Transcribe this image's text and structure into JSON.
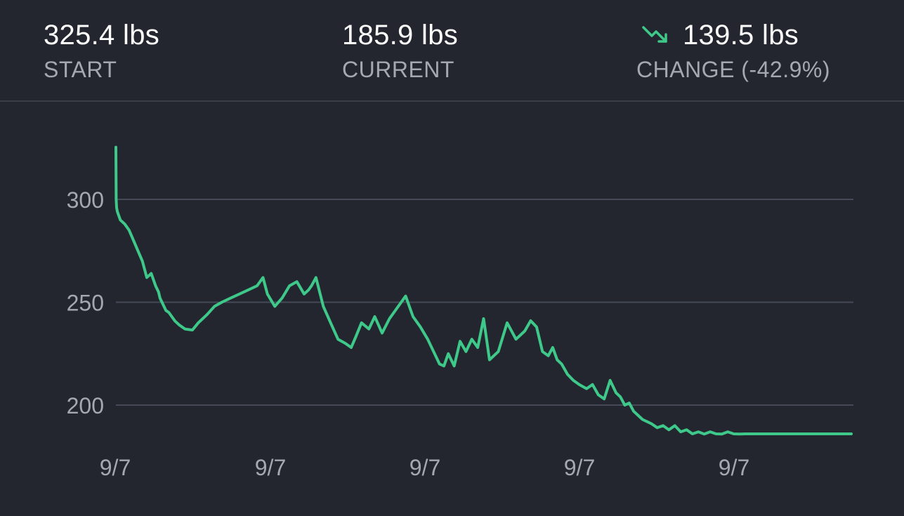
{
  "stats": {
    "start": {
      "value": "325.4 lbs",
      "label": "START"
    },
    "current": {
      "value": "185.9 lbs",
      "label": "CURRENT"
    },
    "change": {
      "value": "139.5 lbs",
      "label": "CHANGE (-42.9%)",
      "icon": "trending-down-icon",
      "color": "#3ec98a"
    }
  },
  "colors": {
    "background": "#23262f",
    "line": "#3ec98a",
    "grid": "#454a56",
    "axis_text": "#a4a8b2"
  },
  "chart_data": {
    "type": "line",
    "title": "",
    "xlabel": "",
    "ylabel": "",
    "ylim": [
      180,
      335
    ],
    "yticks": [
      200,
      250,
      300
    ],
    "xtick_labels": [
      "9/7",
      "9/7",
      "9/7",
      "9/7",
      "9/7"
    ],
    "grid": true,
    "series": [
      {
        "color": "#3ec98a",
        "x": [
          0,
          0.2,
          0.5,
          1,
          3,
          6,
          9,
          12,
          15,
          18,
          21,
          24,
          27,
          29,
          30,
          32,
          34,
          36,
          40,
          43,
          47,
          52,
          56,
          62,
          67,
          72,
          78,
          84,
          90,
          96,
          100,
          103,
          108,
          113,
          118,
          123,
          128,
          131,
          133,
          136,
          141,
          146,
          151,
          156,
          160,
          163,
          167,
          172,
          176,
          181,
          186,
          192,
          197,
          202,
          207,
          212,
          216,
          220,
          223,
          226,
          230,
          234,
          238,
          242,
          246,
          250,
          254,
          260,
          266,
          272,
          278,
          282,
          286,
          290,
          294,
          297,
          300,
          303,
          307,
          311,
          315,
          320,
          324,
          328,
          332,
          336,
          340,
          343,
          346,
          349,
          352,
          355,
          358,
          361,
          364,
          368,
          372,
          376,
          380,
          384,
          388,
          392,
          396,
          400,
          404,
          408,
          412,
          416,
          420,
          424,
          428,
          432,
          436,
          440,
          444,
          448,
          452,
          456,
          460,
          464,
          468,
          472,
          476,
          480,
          484,
          488,
          492,
          496,
          500
        ],
        "values": [
          325.4,
          300,
          296,
          294,
          290,
          288,
          285,
          280,
          275,
          270,
          262,
          264,
          258,
          255,
          252,
          249,
          246,
          245,
          241,
          239,
          237,
          236.5,
          240,
          244,
          248,
          250,
          252,
          254,
          256,
          258,
          262,
          254,
          248,
          252,
          258,
          260,
          254,
          256,
          258,
          262,
          248,
          240,
          232,
          230,
          228,
          233,
          240,
          237,
          243,
          235,
          242,
          248,
          253,
          243,
          238,
          232,
          226,
          220,
          219,
          225,
          219,
          231,
          226,
          232,
          228,
          242,
          222,
          226,
          240,
          232,
          236,
          241,
          238,
          226,
          224,
          228,
          222,
          220,
          215,
          212,
          210,
          208,
          210,
          205,
          203,
          212,
          206,
          204,
          200,
          201,
          197,
          195,
          193,
          192,
          191,
          189,
          190,
          188,
          190,
          187,
          188,
          186,
          187,
          185.9,
          187,
          186,
          185.9,
          187,
          186,
          185.9,
          186,
          186,
          186,
          186,
          186,
          186,
          186,
          186,
          186,
          186,
          186,
          186,
          186,
          186,
          186,
          186,
          186,
          186,
          186
        ]
      }
    ]
  }
}
